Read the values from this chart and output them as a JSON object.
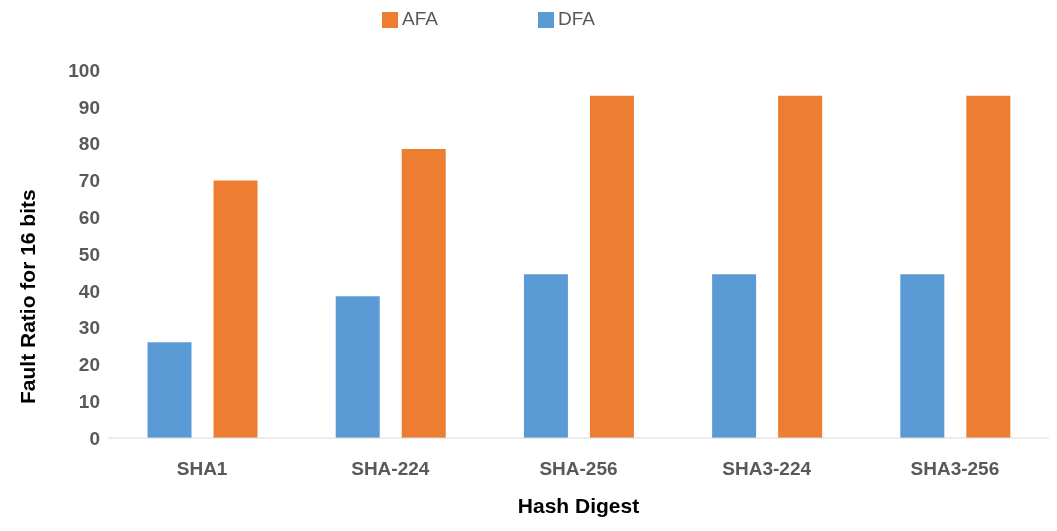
{
  "chart_data": {
    "type": "bar",
    "xlabel": "Hash Digest",
    "ylabel": "Fault  Ratio for 16 bits",
    "categories": [
      "SHA1",
      "SHA-224",
      "SHA-256",
      "SHA3-224",
      "SHA3-256"
    ],
    "series": [
      {
        "name": "DFA",
        "color": "#5b9bd5",
        "values": [
          26,
          38.5,
          44.5,
          44.5,
          44.5
        ]
      },
      {
        "name": "AFA",
        "color": "#ed7d31",
        "values": [
          70,
          78.5,
          93,
          93,
          93
        ]
      }
    ],
    "ylim": [
      0,
      100
    ],
    "yticks": [
      0,
      10,
      20,
      30,
      40,
      50,
      60,
      70,
      80,
      90,
      100
    ],
    "grid": false,
    "legend": "top"
  }
}
